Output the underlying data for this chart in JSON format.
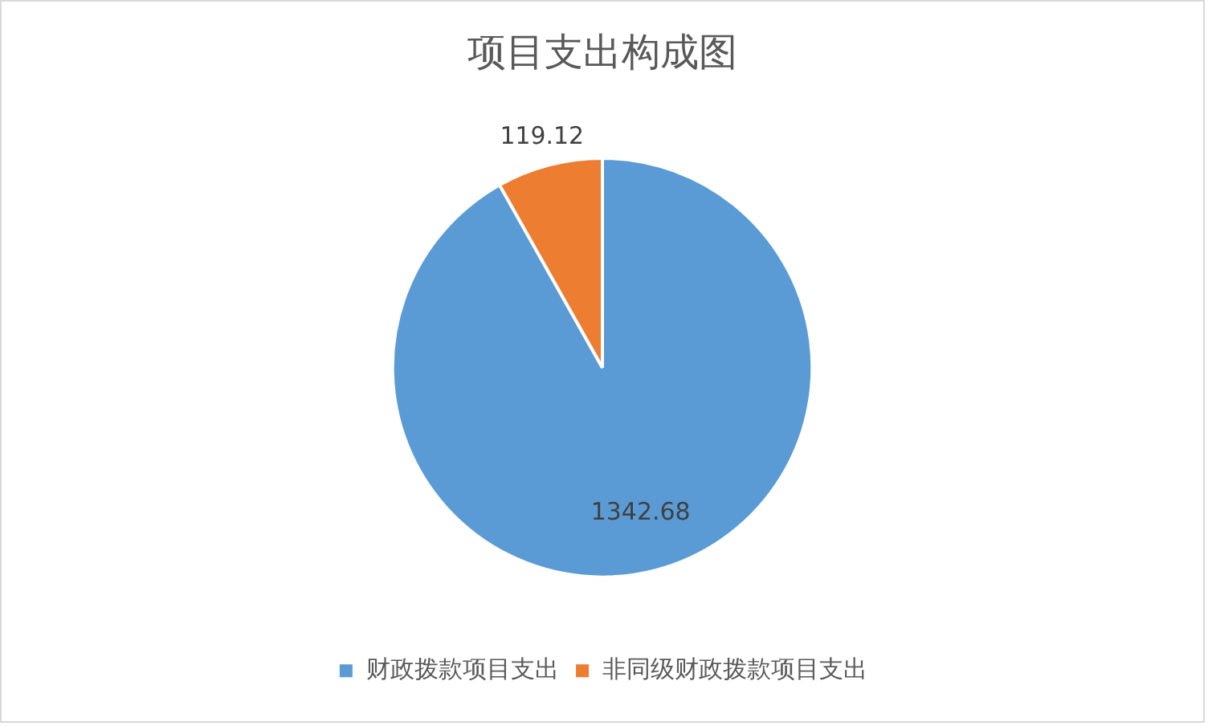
{
  "chart_data": {
    "type": "pie",
    "title": "项目支出构成图",
    "categories": [
      "财政拨款项目支出",
      "非同级财政拨款项目支出"
    ],
    "values": [
      1342.68,
      119.12
    ],
    "colors": [
      "#5b9bd5",
      "#ed7d31"
    ],
    "data_labels": true,
    "legend": "bottom"
  }
}
